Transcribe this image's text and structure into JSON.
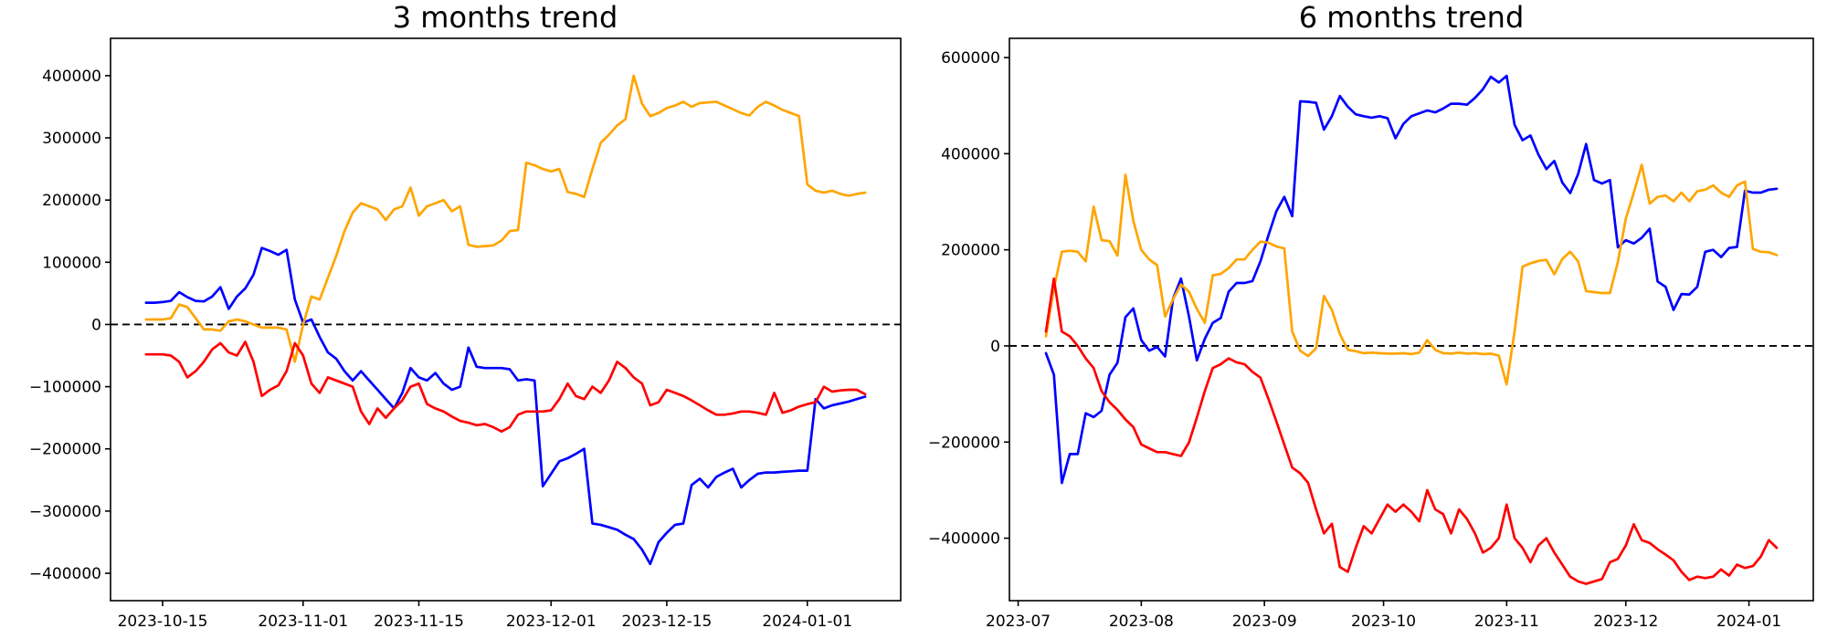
{
  "page": {
    "background": "#ffffff"
  },
  "chart_data": [
    {
      "type": "line",
      "title": "3 months trend",
      "start_date": "2023-10-13",
      "interval_days": 1,
      "xlim_days": [
        -4.3,
        91.3
      ],
      "ylim": [
        -444000,
        460000
      ],
      "grid": false,
      "zero_line": true,
      "x_ticks": [
        {
          "label": "2023-10-15",
          "day": 2
        },
        {
          "label": "2023-11-01",
          "day": 19
        },
        {
          "label": "2023-11-15",
          "day": 33
        },
        {
          "label": "2023-12-01",
          "day": 49
        },
        {
          "label": "2023-12-15",
          "day": 63
        },
        {
          "label": "2024-01-01",
          "day": 80
        }
      ],
      "y_ticks": [
        {
          "label": "400000",
          "value": 400000
        },
        {
          "label": "300000",
          "value": 300000
        },
        {
          "label": "200000",
          "value": 200000
        },
        {
          "label": "100000",
          "value": 100000
        },
        {
          "label": "0",
          "value": 0
        },
        {
          "label": "−100000",
          "value": -100000
        },
        {
          "label": "−200000",
          "value": -200000
        },
        {
          "label": "−300000",
          "value": -300000
        },
        {
          "label": "−400000",
          "value": -400000
        }
      ],
      "series": [
        {
          "name": "blue-line",
          "color": "#0000ff",
          "values": [
            35000,
            35000,
            36000,
            38000,
            52000,
            44000,
            38000,
            37000,
            45000,
            60000,
            25000,
            45000,
            58000,
            80000,
            123000,
            118000,
            112000,
            120000,
            40000,
            3000,
            8000,
            -20000,
            -45000,
            -55000,
            -75000,
            -90000,
            -75000,
            -90000,
            -105000,
            -120000,
            -135000,
            -110000,
            -70000,
            -85000,
            -90000,
            -78000,
            -95000,
            -105000,
            -100000,
            -37000,
            -68000,
            -70000,
            -70000,
            -70000,
            -72000,
            -90000,
            -88000,
            -90000,
            -260000,
            -240000,
            -220000,
            -215000,
            -208000,
            -200000,
            -320000,
            -322000,
            -326000,
            -330000,
            -338000,
            -345000,
            -362000,
            -385000,
            -350000,
            -335000,
            -322000,
            -320000,
            -258000,
            -248000,
            -262000,
            -245000,
            -238000,
            -232000,
            -262000,
            -250000,
            -240000,
            -238000,
            -238000,
            -237000,
            -236000,
            -235000,
            -235000,
            -120000,
            -135000,
            -130000,
            -127000,
            -124000,
            -120000,
            -116000
          ]
        },
        {
          "name": "orange-line",
          "color": "#ffa500",
          "values": [
            8000,
            8000,
            8000,
            10000,
            32000,
            28000,
            10000,
            -8000,
            -8000,
            -10000,
            5000,
            8000,
            5000,
            0,
            -5000,
            -5000,
            -5000,
            -8000,
            -60000,
            0,
            45000,
            40000,
            75000,
            110000,
            150000,
            180000,
            195000,
            190000,
            185000,
            168000,
            185000,
            190000,
            220000,
            175000,
            190000,
            195000,
            200000,
            182000,
            190000,
            128000,
            125000,
            126000,
            127000,
            135000,
            150000,
            152000,
            260000,
            256000,
            250000,
            246000,
            250000,
            213000,
            210000,
            205000,
            250000,
            292000,
            305000,
            320000,
            330000,
            400000,
            355000,
            335000,
            340000,
            348000,
            352000,
            358000,
            350000,
            356000,
            357000,
            358000,
            352000,
            346000,
            340000,
            336000,
            350000,
            358000,
            352000,
            345000,
            340000,
            335000,
            225000,
            215000,
            212000,
            215000,
            210000,
            207000,
            210000,
            212000
          ]
        },
        {
          "name": "red-line",
          "color": "#ff0000",
          "values": [
            -48000,
            -48000,
            -48000,
            -50000,
            -60000,
            -85000,
            -75000,
            -60000,
            -40000,
            -30000,
            -45000,
            -50000,
            -28000,
            -60000,
            -115000,
            -105000,
            -98000,
            -75000,
            -30000,
            -50000,
            -95000,
            -110000,
            -85000,
            -90000,
            -95000,
            -100000,
            -140000,
            -160000,
            -135000,
            -150000,
            -135000,
            -122000,
            -100000,
            -95000,
            -128000,
            -135000,
            -140000,
            -148000,
            -155000,
            -158000,
            -162000,
            -160000,
            -165000,
            -172000,
            -165000,
            -145000,
            -140000,
            -140000,
            -140000,
            -138000,
            -120000,
            -95000,
            -115000,
            -120000,
            -100000,
            -110000,
            -90000,
            -60000,
            -70000,
            -85000,
            -95000,
            -130000,
            -125000,
            -105000,
            -110000,
            -115000,
            -122000,
            -130000,
            -138000,
            -145000,
            -145000,
            -143000,
            -140000,
            -140000,
            -142000,
            -145000,
            -110000,
            -142000,
            -138000,
            -132000,
            -128000,
            -125000,
            -100000,
            -108000,
            -106000,
            -105000,
            -105000,
            -112000
          ]
        }
      ]
    },
    {
      "type": "line",
      "title": "6 months trend",
      "start_date": "2023-07-08",
      "interval_days": 2,
      "xlim_days": [
        -9.2,
        193.2
      ],
      "ylim": [
        -530000,
        640000
      ],
      "grid": false,
      "zero_line": true,
      "x_ticks": [
        {
          "label": "2023-07",
          "day": -7
        },
        {
          "label": "2023-08",
          "day": 24
        },
        {
          "label": "2023-09",
          "day": 55
        },
        {
          "label": "2023-10",
          "day": 85
        },
        {
          "label": "2023-11",
          "day": 116
        },
        {
          "label": "2023-12",
          "day": 146
        },
        {
          "label": "2024-01",
          "day": 177
        }
      ],
      "y_ticks": [
        {
          "label": "600000",
          "value": 600000
        },
        {
          "label": "400000",
          "value": 400000
        },
        {
          "label": "200000",
          "value": 200000
        },
        {
          "label": "0",
          "value": 0
        },
        {
          "label": "−200000",
          "value": -200000
        },
        {
          "label": "−400000",
          "value": -400000
        }
      ],
      "series": [
        {
          "name": "blue-line",
          "color": "#0000ff",
          "values": [
            -15000,
            -60000,
            -285000,
            -225000,
            -225000,
            -140000,
            -148000,
            -135000,
            -60000,
            -35000,
            60000,
            78000,
            12000,
            -10000,
            -2000,
            -22000,
            98000,
            140000,
            62000,
            -30000,
            15000,
            48000,
            58000,
            113000,
            131000,
            131000,
            135000,
            176000,
            230000,
            280000,
            310000,
            270000,
            509000,
            508000,
            506000,
            450000,
            478000,
            520000,
            498000,
            482000,
            478000,
            475000,
            478000,
            474000,
            432000,
            462000,
            478000,
            484000,
            490000,
            486000,
            494000,
            504000,
            504000,
            502000,
            516000,
            534000,
            560000,
            548000,
            562000,
            460000,
            428000,
            438000,
            398000,
            368000,
            385000,
            340000,
            318000,
            358000,
            420000,
            345000,
            338000,
            345000,
            205000,
            220000,
            213000,
            225000,
            244000,
            134000,
            123000,
            75000,
            108000,
            107000,
            123000,
            196000,
            200000,
            185000,
            204000,
            206000,
            323000,
            319000,
            319000,
            325000,
            327000
          ]
        },
        {
          "name": "orange-line",
          "color": "#ffa500",
          "values": [
            20000,
            120000,
            196000,
            198000,
            196000,
            176000,
            290000,
            220000,
            218000,
            188000,
            356000,
            260000,
            200000,
            180000,
            168000,
            61000,
            97000,
            128000,
            113000,
            77000,
            48000,
            147000,
            150000,
            162000,
            180000,
            180000,
            200000,
            217000,
            215000,
            207000,
            203000,
            30000,
            -10000,
            -21000,
            -5000,
            104000,
            75000,
            25000,
            -8000,
            -11000,
            -15000,
            -14000,
            -15000,
            -16000,
            -16000,
            -15000,
            -17000,
            -14000,
            12000,
            -8000,
            -15000,
            -16000,
            -14000,
            -16000,
            -15000,
            -17000,
            -16000,
            -20000,
            -80000,
            30000,
            165000,
            172000,
            177000,
            179000,
            149000,
            181000,
            196000,
            176000,
            114000,
            112000,
            110000,
            110000,
            175000,
            265000,
            319000,
            377000,
            296000,
            310000,
            313000,
            301000,
            319000,
            301000,
            322000,
            325000,
            334000,
            319000,
            310000,
            334000,
            342000,
            202000,
            196000,
            195000,
            189000
          ]
        },
        {
          "name": "red-line",
          "color": "#ff0000",
          "values": [
            30000,
            140000,
            30000,
            20000,
            0,
            -26000,
            -46000,
            -94000,
            -117000,
            -133000,
            -153000,
            -169000,
            -205000,
            -213000,
            -221000,
            -221000,
            -225000,
            -229000,
            -201000,
            -149000,
            -94000,
            -46000,
            -38000,
            -26000,
            -34000,
            -38000,
            -54000,
            -66000,
            -110000,
            -157000,
            -205000,
            -253000,
            -265000,
            -285000,
            -340000,
            -390000,
            -370000,
            -460000,
            -470000,
            -420000,
            -375000,
            -390000,
            -360000,
            -330000,
            -345000,
            -330000,
            -345000,
            -365000,
            -300000,
            -340000,
            -350000,
            -390000,
            -340000,
            -360000,
            -390000,
            -430000,
            -420000,
            -400000,
            -330000,
            -400000,
            -420000,
            -450000,
            -415000,
            -400000,
            -430000,
            -455000,
            -480000,
            -490000,
            -495000,
            -490000,
            -485000,
            -450000,
            -443000,
            -415000,
            -371000,
            -404000,
            -410000,
            -423000,
            -434000,
            -446000,
            -470000,
            -487000,
            -480000,
            -483000,
            -480000,
            -465000,
            -478000,
            -455000,
            -462000,
            -458000,
            -438000,
            -404000,
            -420000
          ]
        }
      ]
    }
  ]
}
